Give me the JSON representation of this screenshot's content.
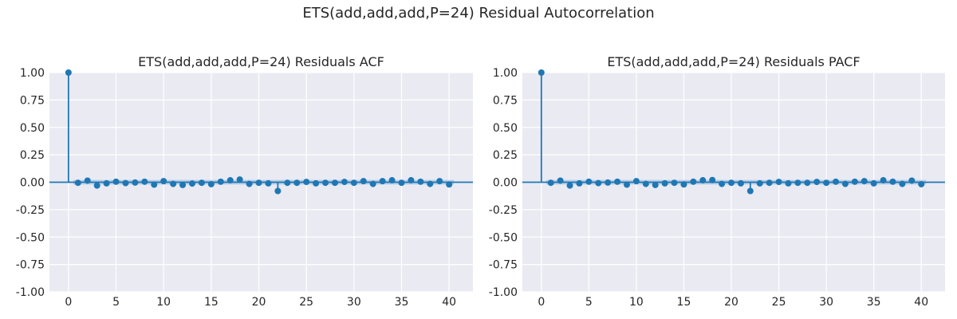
{
  "figure": {
    "suptitle": "ETS(add,add,add,P=24) Residual Autocorrelation"
  },
  "colors": {
    "background": "#EAEAF2",
    "grid": "#FFFFFF",
    "stem": "#1F77B4",
    "conf_band": "#A9C4E0"
  },
  "chart_data": [
    {
      "type": "stem",
      "title": "ETS(add,add,add,P=24) Residuals ACF",
      "xlabel": "",
      "ylabel": "",
      "xlim": [
        -2,
        42.5
      ],
      "ylim": [
        -1.0,
        1.0
      ],
      "xticks": [
        0,
        5,
        10,
        15,
        20,
        25,
        30,
        35,
        40
      ],
      "yticks": [
        -1.0,
        -0.75,
        -0.5,
        -0.25,
        0.0,
        0.25,
        0.5,
        0.75,
        1.0
      ],
      "grid": true,
      "confidence_band": 0.021,
      "lags": [
        0,
        1,
        2,
        3,
        4,
        5,
        6,
        7,
        8,
        9,
        10,
        11,
        12,
        13,
        14,
        15,
        16,
        17,
        18,
        19,
        20,
        21,
        22,
        23,
        24,
        25,
        26,
        27,
        28,
        29,
        30,
        31,
        32,
        33,
        34,
        35,
        36,
        37,
        38,
        39,
        40
      ],
      "values": [
        1.0,
        -0.005,
        0.015,
        -0.03,
        -0.01,
        0.005,
        -0.008,
        -0.003,
        0.005,
        -0.022,
        0.01,
        -0.015,
        -0.025,
        -0.012,
        -0.005,
        -0.018,
        0.005,
        0.018,
        0.025,
        -0.015,
        -0.005,
        -0.01,
        -0.08,
        -0.005,
        -0.005,
        0.003,
        -0.01,
        -0.005,
        -0.005,
        0.003,
        -0.005,
        0.01,
        -0.015,
        0.01,
        0.018,
        -0.005,
        0.018,
        0.005,
        -0.015,
        0.01,
        -0.02
      ]
    },
    {
      "type": "stem",
      "title": "ETS(add,add,add,P=24) Residuals PACF",
      "xlabel": "",
      "ylabel": "",
      "xlim": [
        -2,
        42.5
      ],
      "ylim": [
        -1.0,
        1.0
      ],
      "xticks": [
        0,
        5,
        10,
        15,
        20,
        25,
        30,
        35,
        40
      ],
      "yticks": [
        -1.0,
        -0.75,
        -0.5,
        -0.25,
        0.0,
        0.25,
        0.5,
        0.75,
        1.0
      ],
      "grid": true,
      "confidence_band": 0.021,
      "lags": [
        0,
        1,
        2,
        3,
        4,
        5,
        6,
        7,
        8,
        9,
        10,
        11,
        12,
        13,
        14,
        15,
        16,
        17,
        18,
        19,
        20,
        21,
        22,
        23,
        24,
        25,
        26,
        27,
        28,
        29,
        30,
        31,
        32,
        33,
        34,
        35,
        36,
        37,
        38,
        39,
        40
      ],
      "values": [
        1.0,
        -0.005,
        0.015,
        -0.03,
        -0.01,
        0.005,
        -0.008,
        -0.003,
        0.005,
        -0.022,
        0.01,
        -0.015,
        -0.025,
        -0.01,
        -0.005,
        -0.02,
        0.005,
        0.018,
        0.02,
        -0.015,
        -0.005,
        -0.01,
        -0.08,
        -0.01,
        -0.005,
        0.003,
        -0.01,
        -0.005,
        -0.005,
        0.003,
        -0.005,
        0.005,
        -0.015,
        0.005,
        0.01,
        -0.01,
        0.018,
        0.005,
        -0.015,
        0.015,
        -0.018
      ]
    }
  ]
}
